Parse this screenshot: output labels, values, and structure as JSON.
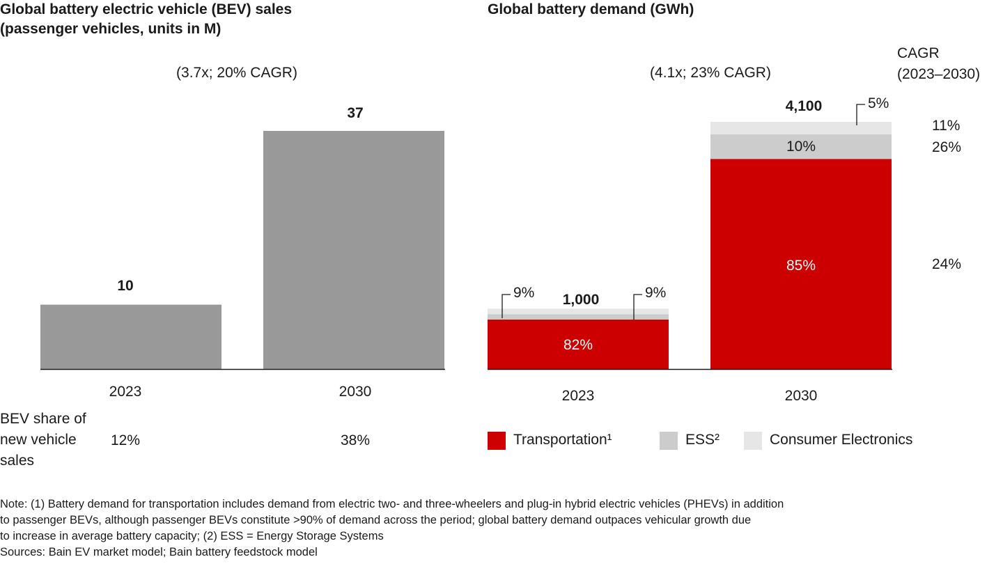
{
  "left_title": [
    "Global battery electric vehicle (BEV) sales",
    "(passenger vehicles, units in M)"
  ],
  "right_title": "Global battery demand (GWh)",
  "chart_data": [
    {
      "type": "bar",
      "title": "Global battery electric vehicle (BEV) sales (passenger vehicles, units in M)",
      "categories": [
        "2023",
        "2030"
      ],
      "values": [
        10,
        37
      ],
      "value_labels": [
        "10",
        "37"
      ],
      "growth_annotation": "(3.7x; 20% CAGR)",
      "bar_color": "#999999",
      "share_row": {
        "label": [
          "BEV share of",
          "new vehicle",
          "sales"
        ],
        "values": [
          "12%",
          "38%"
        ]
      }
    },
    {
      "type": "bar",
      "stacked": true,
      "title": "Global battery demand (GWh)",
      "categories": [
        "2023",
        "2030"
      ],
      "totals": [
        1000,
        4100
      ],
      "total_labels": [
        "1,000",
        "4,100"
      ],
      "growth_annotation": "(4.1x; 23% CAGR)",
      "series": [
        {
          "name": "Transportation¹",
          "color": "#cc0000",
          "shares": [
            82,
            85
          ],
          "labels": [
            "82%",
            "85%"
          ],
          "cagr": "24%"
        },
        {
          "name": "ESS²",
          "color": "#cccccc",
          "shares": [
            9,
            10
          ],
          "labels": [
            "9%",
            "10%"
          ],
          "cagr": "26%"
        },
        {
          "name": "Consumer Electronics",
          "color": "#e6e6e6",
          "shares": [
            9,
            5
          ],
          "labels": [
            "9%",
            "5%"
          ],
          "cagr": "11%"
        }
      ],
      "cagr_header": [
        "CAGR",
        "(2023–2030)"
      ],
      "legend_position": "bottom"
    }
  ],
  "note": [
    "Note: (1) Battery demand for transportation includes demand from electric two- and three-wheelers and plug-in hybrid electric vehicles (PHEVs) in addition",
    "to passenger BEVs, although passenger BEVs constitute >90% of demand across the period; global battery demand outpaces vehicular growth due",
    "to increase in average battery capacity; (2) ESS = Energy Storage Systems",
    "Sources: Bain EV market model; Bain battery feedstock model"
  ]
}
